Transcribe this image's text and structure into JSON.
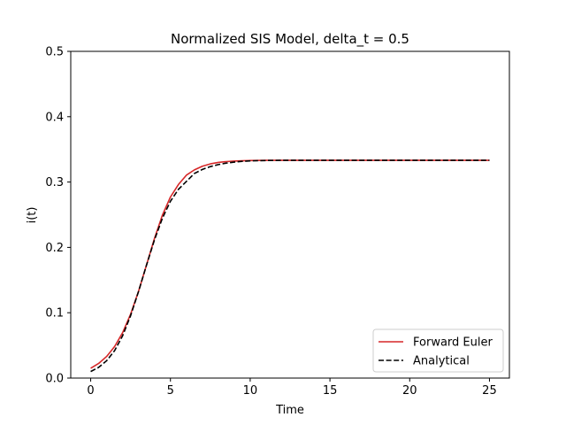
{
  "chart_data": {
    "type": "line",
    "title": "Normalized SIS Model, delta_t = 0.5",
    "xlabel": "Time",
    "ylabel": "i(t)",
    "xlim": [
      -1.25,
      26.25
    ],
    "ylim": [
      0,
      0.5
    ],
    "xticks": [
      0,
      5,
      10,
      15,
      20,
      25
    ],
    "yticks": [
      0.0,
      0.1,
      0.2,
      0.3,
      0.4,
      0.5
    ],
    "xtick_labels": [
      "0",
      "5",
      "10",
      "15",
      "20",
      "25"
    ],
    "ytick_labels": [
      "0.0",
      "0.1",
      "0.2",
      "0.3",
      "0.4",
      "0.5"
    ],
    "grid": false,
    "legend_position": "lower-right",
    "series": [
      {
        "name": "Forward Euler",
        "color": "#d62728",
        "style": "solid",
        "x": [
          0,
          0.5,
          1,
          1.5,
          2,
          2.5,
          3,
          3.5,
          4,
          4.5,
          5,
          5.5,
          6,
          6.5,
          7,
          7.5,
          8,
          8.5,
          9,
          9.5,
          10,
          11,
          12,
          13,
          14,
          15,
          16,
          17,
          18,
          19,
          20,
          21,
          22,
          23,
          24,
          25
        ],
        "y": [
          0.015,
          0.0224,
          0.0331,
          0.0483,
          0.0694,
          0.0976,
          0.1328,
          0.1731,
          0.2138,
          0.2496,
          0.2771,
          0.2962,
          0.3105,
          0.3186,
          0.3242,
          0.3278,
          0.33,
          0.3313,
          0.3321,
          0.3326,
          0.3329,
          0.3332,
          0.3333,
          0.3333,
          0.3333,
          0.3333,
          0.3333,
          0.3333,
          0.3333,
          0.3333,
          0.3333,
          0.3333,
          0.3333,
          0.3333,
          0.3333,
          0.3333
        ]
      },
      {
        "name": "Analytical",
        "color": "#000000",
        "style": "dashed",
        "x": [
          0,
          0.5,
          1,
          1.5,
          2,
          2.5,
          3,
          3.5,
          4,
          4.5,
          5,
          5.5,
          6,
          6.5,
          7,
          7.5,
          8,
          8.5,
          9,
          9.5,
          10,
          11,
          12,
          13,
          14,
          15,
          16,
          17,
          18,
          19,
          20,
          21,
          22,
          23,
          24,
          25
        ],
        "y": [
          0.01,
          0.0164,
          0.0265,
          0.042,
          0.0647,
          0.0953,
          0.1325,
          0.1729,
          0.2116,
          0.2449,
          0.2706,
          0.2888,
          0.3009,
          0.3131,
          0.3193,
          0.3236,
          0.3267,
          0.329,
          0.3306,
          0.3317,
          0.3324,
          0.333,
          0.3332,
          0.3333,
          0.3333,
          0.3333,
          0.3333,
          0.3333,
          0.3333,
          0.3333,
          0.3333,
          0.3333,
          0.3333,
          0.3333,
          0.3333,
          0.3333
        ]
      }
    ]
  }
}
